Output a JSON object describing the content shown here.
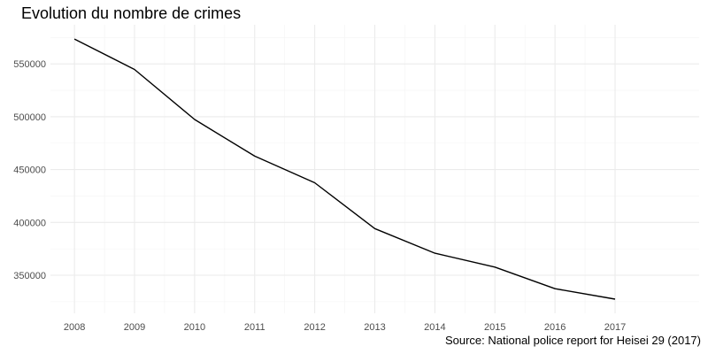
{
  "chart_data": {
    "type": "line",
    "title": "Evolution du nombre de crimes",
    "caption": "Source: National police report for Heisei 29 (2017)",
    "xlabel": "",
    "ylabel": "",
    "x": [
      2008,
      2009,
      2010,
      2011,
      2012,
      2013,
      2014,
      2015,
      2016,
      2017
    ],
    "y": [
      573500,
      544700,
      497400,
      462700,
      437500,
      394100,
      370900,
      357700,
      337300,
      327400
    ],
    "x_ticks": [
      2008,
      2009,
      2010,
      2011,
      2012,
      2013,
      2014,
      2015,
      2016,
      2017
    ],
    "x_tick_labels": [
      "2008",
      "2009",
      "2010",
      "2011",
      "2012",
      "2013",
      "2014",
      "2015",
      "2016",
      "2017"
    ],
    "y_ticks": [
      350000,
      400000,
      450000,
      500000,
      550000
    ],
    "y_tick_labels": [
      "350000",
      "400000",
      "450000",
      "500000",
      "550000"
    ],
    "xlim": [
      2007.6,
      2018.4
    ],
    "ylim": [
      314000,
      587000
    ],
    "grid": true,
    "legend": "none",
    "line_color": "#000000"
  }
}
